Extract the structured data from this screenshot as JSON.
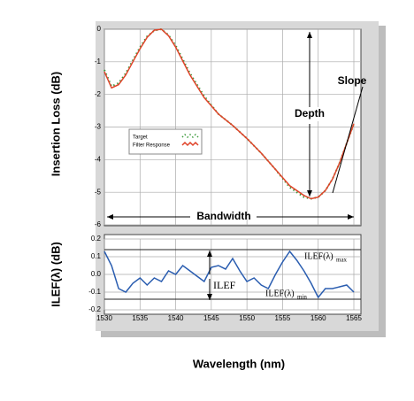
{
  "chart_data": [
    {
      "type": "line",
      "ylabel": "Insertion Loss (dB)",
      "x": [
        1530,
        1531,
        1532,
        1533,
        1534,
        1535,
        1536,
        1537,
        1538,
        1539,
        1540,
        1542,
        1544,
        1546,
        1548,
        1550,
        1552,
        1554,
        1556,
        1558,
        1559,
        1560,
        1561,
        1562,
        1563,
        1564,
        1565
      ],
      "series": [
        {
          "name": "Target",
          "color": "#3a9a3a",
          "dashed": true,
          "values": [
            -1.25,
            -1.75,
            -1.65,
            -1.35,
            -0.95,
            -0.55,
            -0.22,
            -0.04,
            0,
            -0.18,
            -0.5,
            -1.35,
            -2.05,
            -2.6,
            -2.95,
            -3.35,
            -3.8,
            -4.3,
            -4.85,
            -5.15,
            -5.2,
            -5.15,
            -4.95,
            -4.6,
            -4.1,
            -3.5,
            -2.9
          ]
        },
        {
          "name": "Filter Response",
          "color": "#e0442a",
          "dashed": false,
          "values": [
            -1.3,
            -1.8,
            -1.7,
            -1.4,
            -1.0,
            -0.6,
            -0.25,
            -0.03,
            0,
            -0.2,
            -0.55,
            -1.4,
            -2.1,
            -2.6,
            -2.95,
            -3.35,
            -3.8,
            -4.3,
            -4.8,
            -5.1,
            -5.2,
            -5.15,
            -4.95,
            -4.6,
            -4.1,
            -3.5,
            -2.9
          ]
        }
      ],
      "xlim": [
        1530,
        1565
      ],
      "ylim": [
        -6,
        0
      ],
      "yticks": [
        0,
        -1,
        -2,
        -3,
        -4,
        -5,
        -6
      ],
      "grid": true,
      "annotations": [
        "Depth",
        "Slope",
        "Bandwidth"
      ]
    },
    {
      "type": "line",
      "ylabel": "ILEF(λ) (dB)",
      "xlabel": "Wavelength (nm)",
      "x": [
        1530,
        1531,
        1532,
        1533,
        1534,
        1535,
        1536,
        1537,
        1538,
        1539,
        1540,
        1541,
        1542,
        1543,
        1544,
        1545,
        1546,
        1547,
        1548,
        1549,
        1550,
        1551,
        1552,
        1553,
        1554,
        1555,
        1556,
        1557,
        1558,
        1559,
        1560,
        1561,
        1562,
        1563,
        1564,
        1565
      ],
      "series": [
        {
          "color": "#2a5db0",
          "values": [
            0.13,
            0.05,
            -0.08,
            -0.1,
            -0.05,
            -0.02,
            -0.06,
            -0.02,
            -0.04,
            0.02,
            0.0,
            0.05,
            0.02,
            -0.01,
            -0.04,
            0.04,
            0.05,
            0.03,
            0.09,
            0.02,
            -0.04,
            -0.02,
            -0.06,
            -0.08,
            0.0,
            0.07,
            0.13,
            0.08,
            0.02,
            -0.05,
            -0.13,
            -0.08,
            -0.08,
            -0.07,
            -0.06,
            -0.1
          ]
        }
      ],
      "xlim": [
        1530,
        1565
      ],
      "ylim": [
        -0.2,
        0.2
      ],
      "yticks": [
        0.2,
        0.1,
        {
          "value": 0,
          "label": "0.0"
        },
        -0.1,
        -0.2
      ],
      "xticks": [
        1530,
        1535,
        1540,
        1545,
        1550,
        1555,
        1560,
        1565
      ],
      "grid": true,
      "ref_lines": [
        0.14,
        -0.14
      ],
      "annotations": [
        {
          "text": "ILEF"
        },
        {
          "text": "ILEF(λ)",
          "sub": "max"
        },
        {
          "text": "ILEF(λ)",
          "sub": "min"
        }
      ]
    }
  ]
}
